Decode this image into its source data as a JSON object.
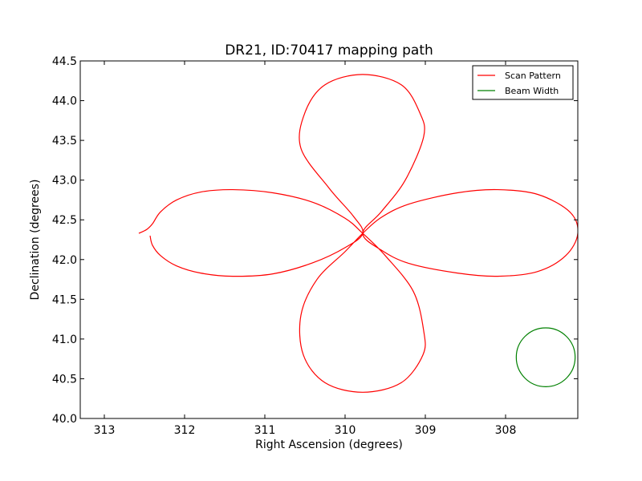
{
  "chart_data": {
    "type": "line",
    "title": "DR21, ID:70417 mapping path",
    "xlabel": "Right Ascension (degrees)",
    "ylabel": "Declination (degrees)",
    "xlim": [
      313.3,
      307.1
    ],
    "ylim": [
      40.0,
      44.5
    ],
    "x_inverted": true,
    "xticks": [
      313,
      312,
      311,
      310,
      309,
      308
    ],
    "xtick_labels": [
      "313",
      "312",
      "311",
      "310",
      "309",
      "308"
    ],
    "yticks": [
      40.0,
      40.5,
      41.0,
      41.5,
      42.0,
      42.5,
      43.0,
      43.5,
      44.0,
      44.5
    ],
    "ytick_labels": [
      "40.0",
      "40.5",
      "41.0",
      "41.5",
      "42.0",
      "42.5",
      "43.0",
      "43.5",
      "44.0",
      "44.5"
    ],
    "grid": false,
    "legend_position": "top-right",
    "series": [
      {
        "name": "Scan Pattern",
        "color": "#ff0000",
        "points": [
          [
            312.43,
            42.3
          ],
          [
            312.4,
            42.18
          ],
          [
            312.3,
            42.05
          ],
          [
            312.1,
            41.92
          ],
          [
            311.8,
            41.83
          ],
          [
            311.4,
            41.79
          ],
          [
            310.9,
            41.82
          ],
          [
            310.4,
            41.96
          ],
          [
            310.0,
            42.15
          ],
          [
            309.78,
            42.33
          ],
          [
            309.9,
            42.55
          ],
          [
            310.2,
            42.9
          ],
          [
            310.55,
            43.4
          ],
          [
            310.5,
            43.85
          ],
          [
            310.25,
            44.2
          ],
          [
            309.78,
            44.33
          ],
          [
            309.3,
            44.2
          ],
          [
            309.07,
            43.85
          ],
          [
            309.02,
            43.55
          ],
          [
            309.25,
            43.0
          ],
          [
            309.55,
            42.6
          ],
          [
            309.78,
            42.33
          ],
          [
            309.55,
            42.12
          ],
          [
            309.2,
            41.95
          ],
          [
            308.6,
            41.83
          ],
          [
            308.1,
            41.79
          ],
          [
            307.6,
            41.85
          ],
          [
            307.25,
            42.05
          ],
          [
            307.1,
            42.33
          ],
          [
            307.2,
            42.6
          ],
          [
            307.6,
            42.82
          ],
          [
            308.1,
            42.88
          ],
          [
            308.6,
            42.84
          ],
          [
            309.2,
            42.7
          ],
          [
            309.55,
            42.53
          ],
          [
            309.78,
            42.33
          ],
          [
            310.0,
            42.1
          ],
          [
            310.35,
            41.75
          ],
          [
            310.55,
            41.3
          ],
          [
            310.52,
            40.8
          ],
          [
            310.25,
            40.45
          ],
          [
            309.78,
            40.33
          ],
          [
            309.3,
            40.45
          ],
          [
            309.03,
            40.8
          ],
          [
            309.02,
            41.1
          ],
          [
            309.15,
            41.6
          ],
          [
            309.5,
            42.05
          ],
          [
            309.78,
            42.33
          ],
          [
            310.0,
            42.52
          ],
          [
            310.4,
            42.72
          ],
          [
            310.9,
            42.84
          ],
          [
            311.4,
            42.88
          ],
          [
            311.8,
            42.85
          ],
          [
            312.1,
            42.75
          ],
          [
            312.3,
            42.6
          ],
          [
            312.4,
            42.45
          ],
          [
            312.47,
            42.38
          ],
          [
            312.57,
            42.33
          ]
        ]
      },
      {
        "name": "Beam Width",
        "color": "#008000",
        "shape": "circle",
        "center": [
          307.5,
          40.77
        ],
        "radius_dec": 0.37
      }
    ]
  }
}
